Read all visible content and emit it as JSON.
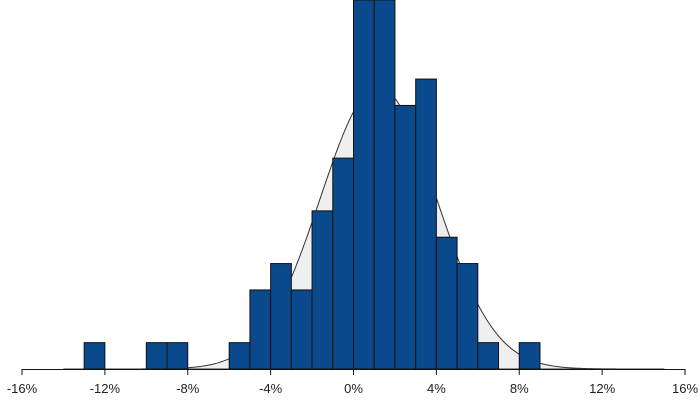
{
  "chart_data": {
    "type": "bar",
    "subtype": "histogram-with-normal-curve",
    "title": "",
    "xlabel": "",
    "ylabel": "",
    "bin_width": 1,
    "xlim": [
      -16.5,
      16.5
    ],
    "ylim": [
      0,
      14
    ],
    "bins": [
      {
        "x0": -13,
        "x1": -12,
        "count": 1
      },
      {
        "x0": -10,
        "x1": -9,
        "count": 1
      },
      {
        "x0": -9,
        "x1": -8,
        "count": 1
      },
      {
        "x0": -6,
        "x1": -5,
        "count": 1
      },
      {
        "x0": -5,
        "x1": -4,
        "count": 3
      },
      {
        "x0": -4,
        "x1": -3,
        "count": 4
      },
      {
        "x0": -3,
        "x1": -2,
        "count": 3
      },
      {
        "x0": -2,
        "x1": -1,
        "count": 6
      },
      {
        "x0": -1,
        "x1": 0,
        "count": 8
      },
      {
        "x0": 0,
        "x1": 1,
        "count": 14
      },
      {
        "x0": 1,
        "x1": 2,
        "count": 14
      },
      {
        "x0": 2,
        "x1": 3,
        "count": 10
      },
      {
        "x0": 3,
        "x1": 4,
        "count": 11
      },
      {
        "x0": 4,
        "x1": 5,
        "count": 5
      },
      {
        "x0": 5,
        "x1": 6,
        "count": 4
      },
      {
        "x0": 6,
        "x1": 7,
        "count": 1
      },
      {
        "x0": 8,
        "x1": 9,
        "count": 1
      }
    ],
    "normal_curve": {
      "mean": 1.2,
      "sd": 2.8,
      "peak_count": 10.7,
      "x_range": [
        -14,
        15
      ]
    },
    "x_ticks": [
      {
        "value": -16,
        "label": "-16%"
      },
      {
        "value": -12,
        "label": "-12%"
      },
      {
        "value": -8,
        "label": "-8%"
      },
      {
        "value": -4,
        "label": "-4%"
      },
      {
        "value": 0,
        "label": "0%"
      },
      {
        "value": 4,
        "label": "4%"
      },
      {
        "value": 8,
        "label": "8%"
      },
      {
        "value": 12,
        "label": "12%"
      },
      {
        "value": 16,
        "label": "16%"
      }
    ],
    "grid": false,
    "legend": "none",
    "colors": {
      "bar_fill": "#0a4a8c",
      "bar_stroke": "#111111",
      "curve_fill": "#efefef",
      "curve_stroke": "#333333",
      "axis": "#111111"
    }
  }
}
